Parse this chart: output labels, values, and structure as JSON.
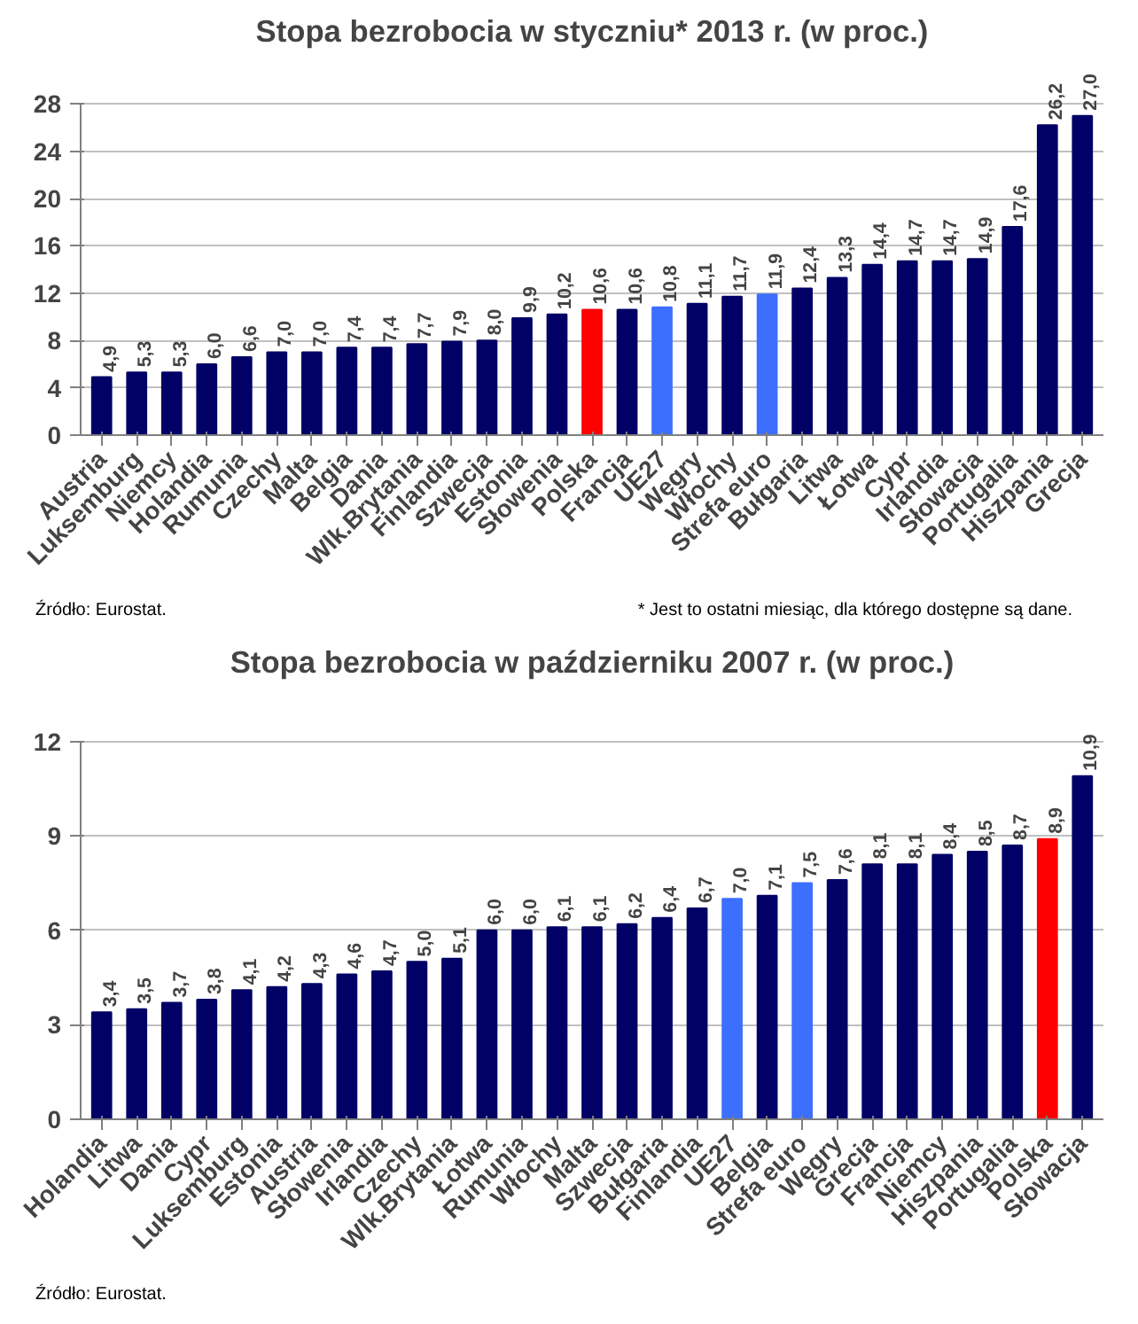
{
  "chart_data": [
    {
      "type": "bar",
      "title": "Stopa bezrobocia w styczniu* 2013 r. (w proc.)",
      "categories": [
        "Austria",
        "Luksemburg",
        "Niemcy",
        "Holandia",
        "Rumunia",
        "Czechy",
        "Malta",
        "Belgia",
        "Dania",
        "Wlk.Brytania",
        "Finlandia",
        "Szwecja",
        "Estonia",
        "Słowenia",
        "Polska",
        "Francja",
        "UE27",
        "Węgry",
        "Włochy",
        "Strefa euro",
        "Bułgaria",
        "Litwa",
        "Łotwa",
        "Cypr",
        "Irlandia",
        "Słowacja",
        "Portugalia",
        "Hiszpania",
        "Grecja"
      ],
      "values": [
        4.9,
        5.3,
        5.3,
        6.0,
        6.6,
        7.0,
        7.0,
        7.4,
        7.4,
        7.7,
        7.9,
        8.0,
        9.9,
        10.2,
        10.6,
        10.6,
        10.8,
        11.1,
        11.7,
        11.9,
        12.4,
        13.3,
        14.4,
        14.7,
        14.7,
        14.9,
        17.6,
        26.2,
        27.0
      ],
      "value_labels": [
        "4,9",
        "5,3",
        "5,3",
        "6,0",
        "6,6",
        "7,0",
        "7,0",
        "7,4",
        "7,4",
        "7,7",
        "7,9",
        "8,0",
        "9,9",
        "10,2",
        "10,6",
        "10,6",
        "10,8",
        "11,1",
        "11,7",
        "11,9",
        "12,4",
        "13,3",
        "14,4",
        "14,7",
        "14,7",
        "14,9",
        "17,6",
        "26,2",
        "27,0"
      ],
      "colors": [
        "#000066",
        "#000066",
        "#000066",
        "#000066",
        "#000066",
        "#000066",
        "#000066",
        "#000066",
        "#000066",
        "#000066",
        "#000066",
        "#000066",
        "#000066",
        "#000066",
        "#ff0000",
        "#000066",
        "#3d6fff",
        "#000066",
        "#000066",
        "#3d6fff",
        "#000066",
        "#000066",
        "#000066",
        "#000066",
        "#000066",
        "#000066",
        "#000066",
        "#000066",
        "#000066"
      ],
      "ylim": [
        0,
        28
      ],
      "yticks": [
        0,
        4,
        8,
        12,
        16,
        20,
        24,
        28
      ],
      "grid": "y",
      "annotations": [
        "Źródło: Eurostat.",
        "* Jest to ostatni miesiąc, dla którego dostępne są dane."
      ]
    },
    {
      "type": "bar",
      "title": "Stopa bezrobocia w październiku 2007 r. (w proc.)",
      "categories": [
        "Holandia",
        "Litwa",
        "Dania",
        "Cypr",
        "Luksemburg",
        "Estonia",
        "Austria",
        "Słowenia",
        "Irlandia",
        "Czechy",
        "Wlk.Brytania",
        "Łotwa",
        "Rumunia",
        "Włochy",
        "Malta",
        "Szwecja",
        "Bułgaria",
        "Finlandia",
        "UE27",
        "Belgia",
        "Strefa euro",
        "Węgry",
        "Grecja",
        "Francja",
        "Niemcy",
        "Hiszpania",
        "Portugalia",
        "Polska",
        "Słowacja"
      ],
      "values": [
        3.4,
        3.5,
        3.7,
        3.8,
        4.1,
        4.2,
        4.3,
        4.6,
        4.7,
        5.0,
        5.1,
        6.0,
        6.0,
        6.1,
        6.1,
        6.2,
        6.4,
        6.7,
        7.0,
        7.1,
        7.5,
        7.6,
        8.1,
        8.1,
        8.4,
        8.5,
        8.7,
        8.9,
        10.9
      ],
      "value_labels": [
        "3,4",
        "3,5",
        "3,7",
        "3,8",
        "4,1",
        "4,2",
        "4,3",
        "4,6",
        "4,7",
        "5,0",
        "5,1",
        "6,0",
        "6,0",
        "6,1",
        "6,1",
        "6,2",
        "6,4",
        "6,7",
        "7,0",
        "7,1",
        "7,5",
        "7,6",
        "8,1",
        "8,1",
        "8,4",
        "8,5",
        "8,7",
        "8,9",
        "10,9"
      ],
      "colors": [
        "#000066",
        "#000066",
        "#000066",
        "#000066",
        "#000066",
        "#000066",
        "#000066",
        "#000066",
        "#000066",
        "#000066",
        "#000066",
        "#000066",
        "#000066",
        "#000066",
        "#000066",
        "#000066",
        "#000066",
        "#000066",
        "#3d6fff",
        "#000066",
        "#3d6fff",
        "#000066",
        "#000066",
        "#000066",
        "#000066",
        "#000066",
        "#000066",
        "#ff0000",
        "#000066"
      ],
      "ylim": [
        0,
        12
      ],
      "yticks": [
        0,
        3,
        6,
        9,
        12
      ],
      "grid": "y",
      "annotations": [
        "Źródło: Eurostat."
      ]
    }
  ]
}
